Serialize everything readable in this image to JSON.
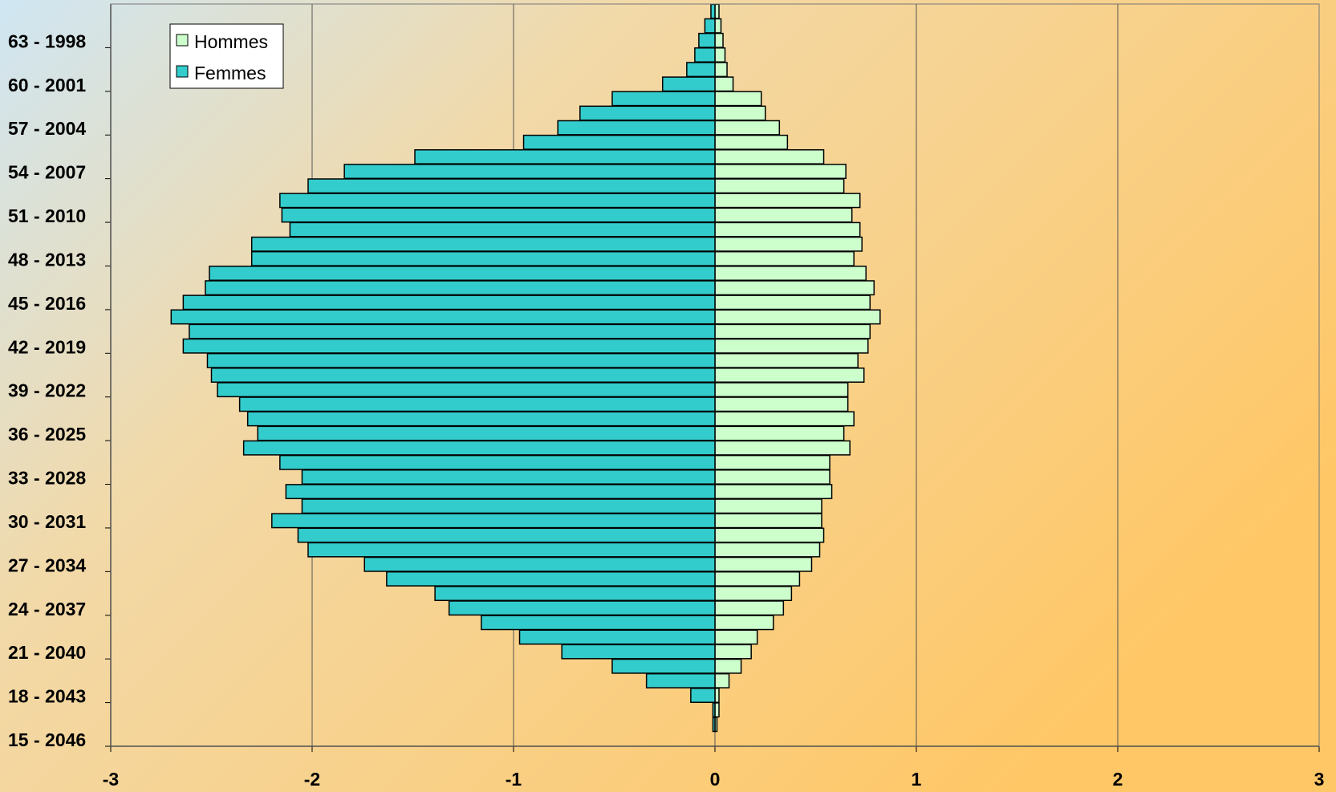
{
  "chart_data": {
    "type": "pyramid",
    "categories": [
      "15 - 2046",
      null,
      null,
      "18 - 2043",
      null,
      null,
      "21 - 2040",
      null,
      null,
      "24 - 2037",
      null,
      null,
      "27 - 2034",
      null,
      null,
      "30 - 2031",
      null,
      null,
      "33 - 2028",
      null,
      null,
      "36 - 2025",
      null,
      null,
      "39 - 2022",
      null,
      null,
      "42 - 2019",
      null,
      null,
      "45 - 2016",
      null,
      null,
      "48 - 2013",
      null,
      null,
      "51 - 2010",
      null,
      null,
      "54 - 2007",
      null,
      null,
      "57 - 2004",
      null,
      null,
      "60 - 2001",
      null,
      null,
      "63 - 1998",
      null,
      null
    ],
    "series": [
      {
        "name": "Hommes",
        "color": "#ccffcc",
        "values": [
          0,
          0.01,
          0.02,
          0.02,
          0.07,
          0.13,
          0.18,
          0.21,
          0.29,
          0.34,
          0.38,
          0.42,
          0.48,
          0.52,
          0.54,
          0.53,
          0.53,
          0.58,
          0.57,
          0.57,
          0.67,
          0.64,
          0.69,
          0.66,
          0.66,
          0.74,
          0.71,
          0.76,
          0.77,
          0.82,
          0.77,
          0.79,
          0.75,
          0.69,
          0.73,
          0.72,
          0.68,
          0.72,
          0.64,
          0.65,
          0.54,
          0.36,
          0.32,
          0.25,
          0.23,
          0.09,
          0.06,
          0.05,
          0.04,
          0.03,
          0.02
        ]
      },
      {
        "name": "Femmes",
        "color": "#33cccc",
        "values": [
          0,
          -0.01,
          -0.01,
          -0.12,
          -0.34,
          -0.51,
          -0.76,
          -0.97,
          -1.16,
          -1.32,
          -1.39,
          -1.63,
          -1.74,
          -2.02,
          -2.07,
          -2.2,
          -2.05,
          -2.13,
          -2.05,
          -2.16,
          -2.34,
          -2.27,
          -2.32,
          -2.36,
          -2.47,
          -2.5,
          -2.52,
          -2.64,
          -2.61,
          -2.7,
          -2.64,
          -2.53,
          -2.51,
          -2.3,
          -2.3,
          -2.11,
          -2.15,
          -2.16,
          -2.02,
          -1.84,
          -1.49,
          -0.95,
          -0.78,
          -0.67,
          -0.51,
          -0.26,
          -0.14,
          -0.1,
          -0.08,
          -0.05,
          -0.02
        ]
      }
    ],
    "xlim": [
      -3,
      3
    ],
    "xticks": [
      -3,
      -2,
      -1,
      0,
      1,
      2,
      3
    ],
    "grid": true,
    "legend": "top-left"
  }
}
